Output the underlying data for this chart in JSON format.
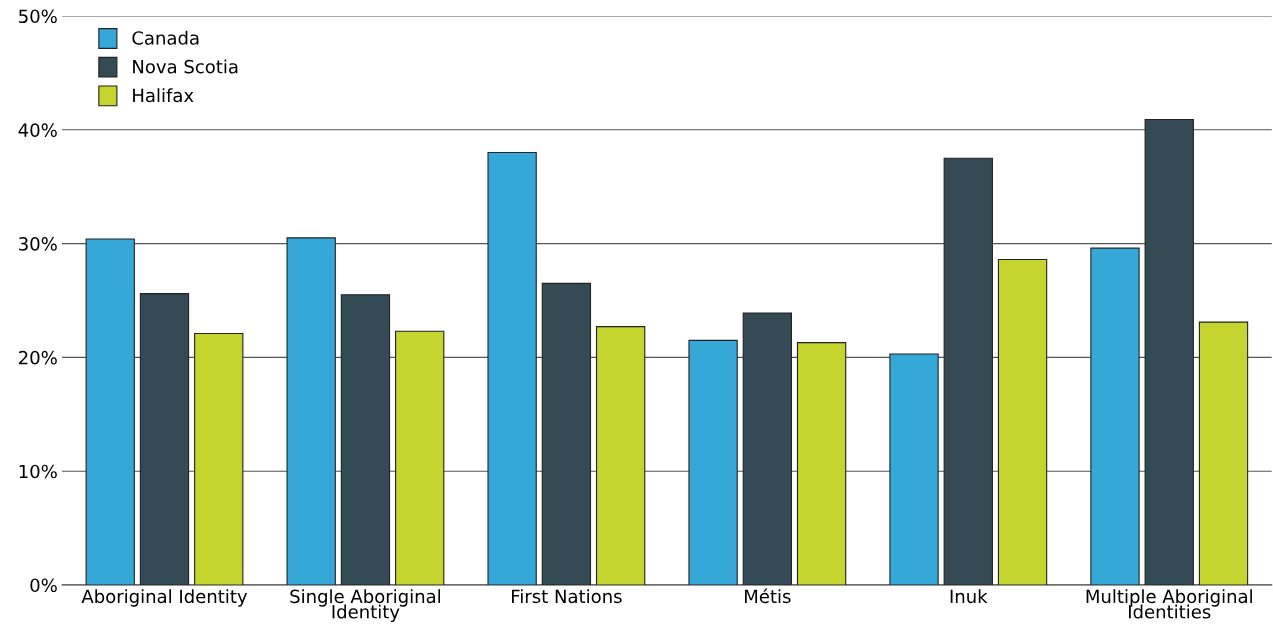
{
  "chart_data": {
    "type": "bar",
    "categories": [
      "Aboriginal Identity",
      "Single Aboriginal\nIdentity",
      "First Nations",
      "Métis",
      "Inuk",
      "Multiple Aboriginal\nIdentities"
    ],
    "series": [
      {
        "name": "Canada",
        "color": "#35a8d8",
        "values": [
          30.4,
          30.5,
          38.0,
          21.5,
          20.3,
          29.6
        ]
      },
      {
        "name": "Nova Scotia",
        "color": "#344a54",
        "values": [
          25.6,
          25.5,
          26.5,
          23.9,
          37.5,
          40.9
        ]
      },
      {
        "name": "Halifax",
        "color": "#c5d42f",
        "values": [
          22.1,
          22.3,
          22.7,
          21.3,
          28.6,
          23.1
        ]
      }
    ],
    "ylim": [
      0,
      50
    ],
    "yticks": [
      {
        "value": 0,
        "label": "0%"
      },
      {
        "value": 10,
        "label": "10%"
      },
      {
        "value": 20,
        "label": "20%"
      },
      {
        "value": 30,
        "label": "30%"
      },
      {
        "value": 40,
        "label": "40%"
      },
      {
        "value": 50,
        "label": "50%"
      }
    ],
    "grid": "y",
    "legend": "top left"
  }
}
